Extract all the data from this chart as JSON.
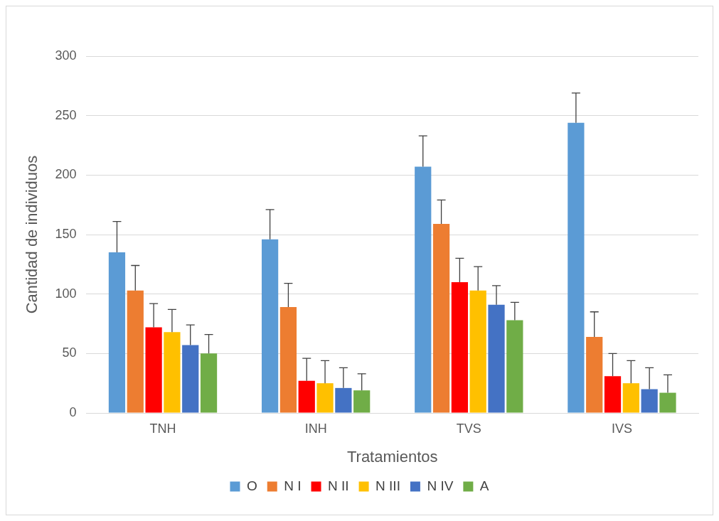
{
  "chart_data": {
    "type": "bar",
    "xlabel": "Tratamientos",
    "ylabel": "Cantidad de individuos",
    "categories": [
      "TNH",
      "INH",
      "TVS",
      "IVS"
    ],
    "ylim": [
      0,
      300
    ],
    "yticks": [
      0,
      50,
      100,
      150,
      200,
      250,
      300
    ],
    "grid": "y",
    "legend": "bottom",
    "series": [
      {
        "name": "O",
        "color": "#5b9bd5",
        "values": [
          135,
          146,
          207,
          244
        ],
        "errors": [
          [
            135,
            161
          ],
          [
            146,
            171
          ],
          [
            207,
            233
          ],
          [
            244,
            269
          ]
        ]
      },
      {
        "name": "N I",
        "color": "#ed7d31",
        "values": [
          103,
          89,
          159,
          64
        ],
        "errors": [
          [
            103,
            124
          ],
          [
            89,
            109
          ],
          [
            159,
            179
          ],
          [
            64,
            85
          ]
        ]
      },
      {
        "name": "N II",
        "color": "#ff0000",
        "values": [
          72,
          27,
          110,
          31
        ],
        "errors": [
          [
            72,
            92
          ],
          [
            27,
            46
          ],
          [
            110,
            130
          ],
          [
            31,
            50
          ]
        ]
      },
      {
        "name": "N III",
        "color": "#ffc000",
        "values": [
          68,
          25,
          103,
          25
        ],
        "errors": [
          [
            68,
            87
          ],
          [
            25,
            44
          ],
          [
            103,
            123
          ],
          [
            25,
            44
          ]
        ]
      },
      {
        "name": "N IV",
        "color": "#4472c4",
        "values": [
          57,
          21,
          91,
          20
        ],
        "errors": [
          [
            57,
            74
          ],
          [
            21,
            38
          ],
          [
            91,
            107
          ],
          [
            20,
            38
          ]
        ]
      },
      {
        "name": "A",
        "color": "#70ad47",
        "values": [
          50,
          19,
          78,
          17
        ],
        "errors": [
          [
            50,
            66
          ],
          [
            19,
            33
          ],
          [
            78,
            93
          ],
          [
            17,
            32
          ]
        ]
      }
    ]
  }
}
